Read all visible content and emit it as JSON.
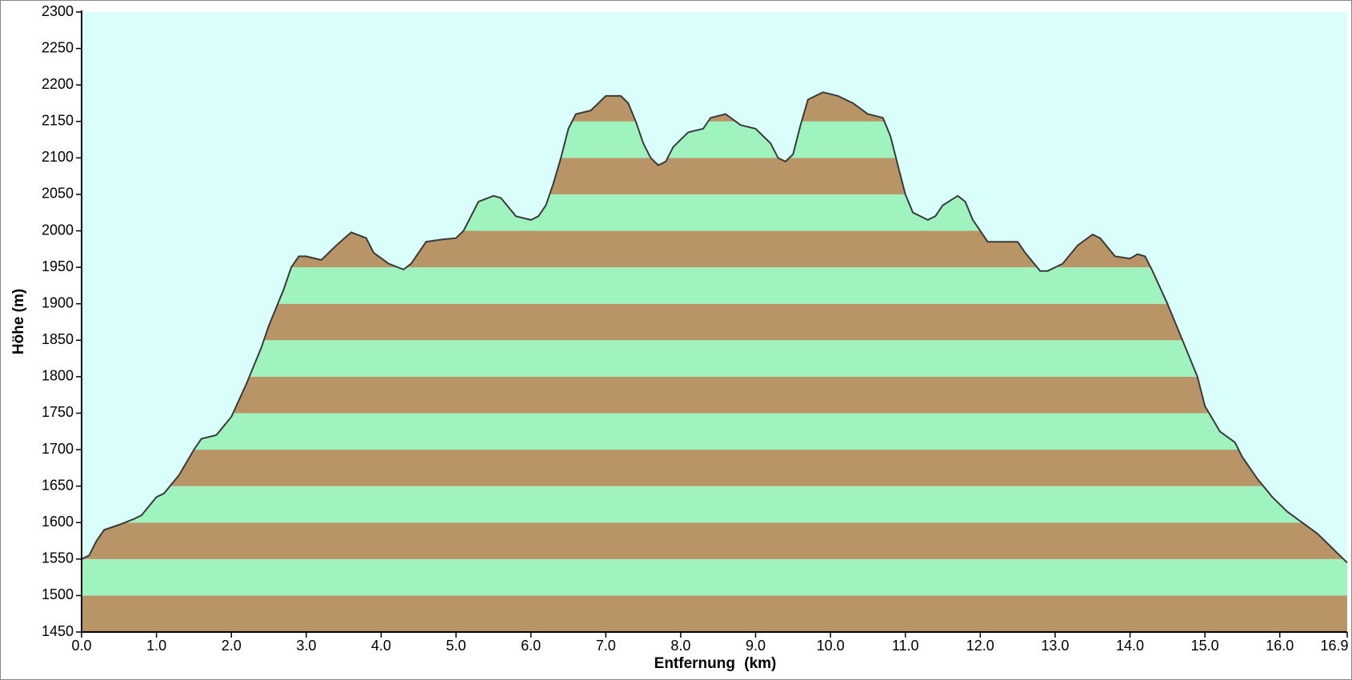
{
  "chart_data": {
    "type": "area",
    "y_label": "Höhe (m)",
    "x_label": "Entfernung (km)",
    "x": [
      0.0,
      0.1,
      0.2,
      0.3,
      0.5,
      0.7,
      0.8,
      1.0,
      1.1,
      1.3,
      1.5,
      1.6,
      1.8,
      2.0,
      2.2,
      2.4,
      2.5,
      2.6,
      2.7,
      2.8,
      2.9,
      3.0,
      3.2,
      3.4,
      3.6,
      3.8,
      3.9,
      4.1,
      4.3,
      4.4,
      4.6,
      4.8,
      5.0,
      5.1,
      5.3,
      5.5,
      5.6,
      5.8,
      6.0,
      6.1,
      6.2,
      6.3,
      6.4,
      6.5,
      6.6,
      6.8,
      7.0,
      7.2,
      7.3,
      7.4,
      7.5,
      7.6,
      7.7,
      7.8,
      7.9,
      8.1,
      8.3,
      8.4,
      8.6,
      8.8,
      9.0,
      9.2,
      9.3,
      9.4,
      9.5,
      9.6,
      9.7,
      9.9,
      10.1,
      10.3,
      10.5,
      10.7,
      10.8,
      10.9,
      11.0,
      11.1,
      11.3,
      11.4,
      11.5,
      11.7,
      11.8,
      11.9,
      12.1,
      12.3,
      12.5,
      12.6,
      12.8,
      12.9,
      13.1,
      13.3,
      13.5,
      13.6,
      13.8,
      14.0,
      14.1,
      14.2,
      14.3,
      14.5,
      14.7,
      14.9,
      15.0,
      15.2,
      15.4,
      15.5,
      15.7,
      15.9,
      16.1,
      16.3,
      16.5,
      16.7,
      16.85,
      16.9
    ],
    "values": [
      1550,
      1555,
      1575,
      1590,
      1597,
      1605,
      1610,
      1635,
      1640,
      1665,
      1700,
      1715,
      1720,
      1745,
      1790,
      1840,
      1870,
      1895,
      1920,
      1950,
      1965,
      1965,
      1960,
      1980,
      1998,
      1990,
      1970,
      1955,
      1947,
      1955,
      1985,
      1988,
      1990,
      2000,
      2040,
      2048,
      2045,
      2020,
      2015,
      2020,
      2035,
      2065,
      2100,
      2140,
      2160,
      2165,
      2185,
      2185,
      2175,
      2150,
      2120,
      2100,
      2090,
      2095,
      2115,
      2135,
      2140,
      2155,
      2160,
      2145,
      2140,
      2120,
      2100,
      2095,
      2105,
      2145,
      2180,
      2190,
      2185,
      2175,
      2160,
      2155,
      2130,
      2090,
      2050,
      2025,
      2015,
      2020,
      2035,
      2048,
      2040,
      2015,
      1985,
      1985,
      1985,
      1970,
      1945,
      1945,
      1955,
      1980,
      1995,
      1990,
      1965,
      1962,
      1968,
      1965,
      1945,
      1900,
      1850,
      1800,
      1760,
      1725,
      1710,
      1690,
      1660,
      1635,
      1615,
      1600,
      1585,
      1565,
      1550,
      1545
    ],
    "xlim": [
      0,
      16.9
    ],
    "ylim": [
      1450,
      2300
    ],
    "xticks": [
      {
        "value": 0,
        "label": "0.0"
      },
      {
        "value": 1,
        "label": "1.0"
      },
      {
        "value": 2,
        "label": "2.0"
      },
      {
        "value": 3,
        "label": "3.0"
      },
      {
        "value": 4,
        "label": "4.0"
      },
      {
        "value": 5,
        "label": "5.0"
      },
      {
        "value": 6,
        "label": "6.0"
      },
      {
        "value": 7,
        "label": "7.0"
      },
      {
        "value": 8,
        "label": "8.0"
      },
      {
        "value": 9,
        "label": "9.0"
      },
      {
        "value": 10,
        "label": "10.0"
      },
      {
        "value": 11,
        "label": "11.0"
      },
      {
        "value": 12,
        "label": "12.0"
      },
      {
        "value": 13,
        "label": "13.0"
      },
      {
        "value": 14,
        "label": "14.0"
      },
      {
        "value": 15,
        "label": "15.0"
      },
      {
        "value": 16,
        "label": "16.0"
      },
      {
        "value": 16.9,
        "label": "16.9"
      }
    ],
    "yticks": [
      1450,
      1500,
      1550,
      1600,
      1650,
      1700,
      1750,
      1800,
      1850,
      1900,
      1950,
      2000,
      2050,
      2100,
      2150,
      2200,
      2250,
      2300
    ],
    "band_colors": [
      "#b89467",
      "#9ef3bf"
    ],
    "background": "#dafefb",
    "line_color": "#3a3a3a"
  }
}
